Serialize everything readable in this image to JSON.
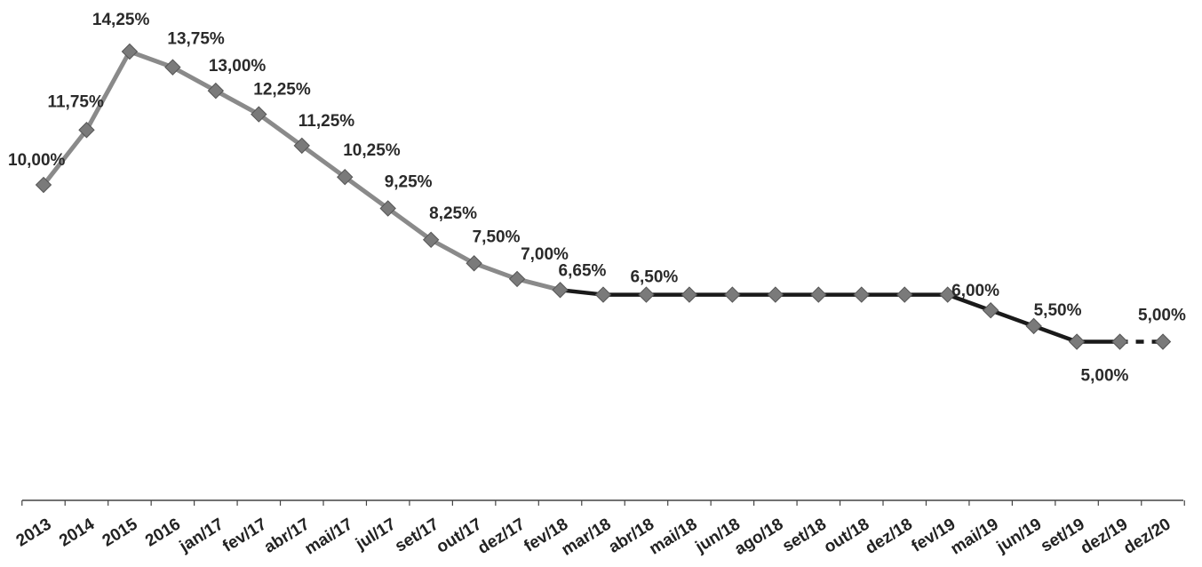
{
  "chart_data": {
    "type": "line",
    "categories": [
      "2013",
      "2014",
      "2015",
      "2016",
      "jan/17",
      "fev/17",
      "abr/17",
      "mai/17",
      "jul/17",
      "set/17",
      "out/17",
      "dez/17",
      "fev/18",
      "mar/18",
      "abr/18",
      "mai/18",
      "jun/18",
      "ago/18",
      "set/18",
      "out/18",
      "dez/18",
      "fev/19",
      "mai/19",
      "jun/19",
      "set/19",
      "dez/19",
      "dez/20"
    ],
    "values": [
      10.0,
      11.75,
      14.25,
      13.75,
      13.0,
      12.25,
      11.25,
      10.25,
      9.25,
      8.25,
      7.5,
      7.0,
      6.65,
      6.5,
      6.5,
      6.5,
      6.5,
      6.5,
      6.5,
      6.5,
      6.5,
      6.5,
      6.0,
      5.5,
      5.0,
      5.0,
      5.0
    ],
    "data_labels": [
      "10,00%",
      "11,75%",
      "14,25%",
      "13,75%",
      "13,00%",
      "12,25%",
      "11,25%",
      "10,25%",
      "9,25%",
      "8,25%",
      "7,50%",
      "7,00%",
      "6,65%",
      "",
      "6,50%",
      "",
      "",
      "",
      "",
      "",
      "",
      "",
      "6,00%",
      "5,50%",
      "",
      "5,00%",
      "5,00%"
    ],
    "colors": {
      "early_line": "#8a8a8a",
      "late_line": "#1a1a1a",
      "marker": "#7a7a7a",
      "axis": "#444444"
    },
    "title": "",
    "xlabel": "",
    "ylabel": "",
    "grid": false,
    "legend": "none"
  }
}
